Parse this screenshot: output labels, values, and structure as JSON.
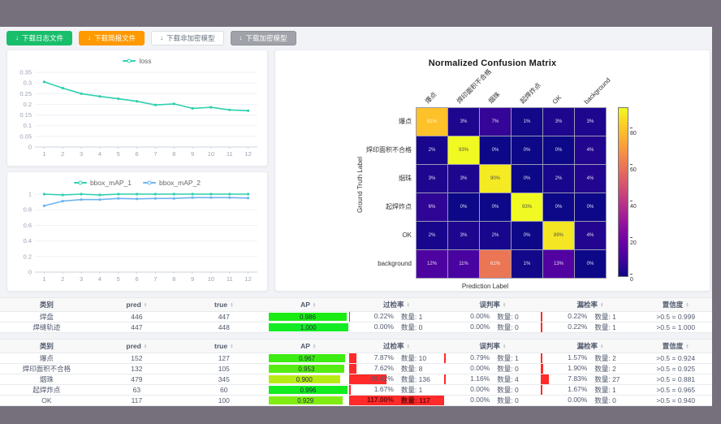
{
  "window": {
    "frame_color": "#76707d",
    "content_bg": "#f2f3f6"
  },
  "toolbar": {
    "buttons": [
      {
        "label": "下载日志文件",
        "icon": "download-icon",
        "color": "#19be6b",
        "text_color": "#ffffff"
      },
      {
        "label": "下载简报文件",
        "icon": "download-icon",
        "color": "#ff9900",
        "text_color": "#ffffff"
      },
      {
        "label": "下载非加密模型",
        "icon": "download-icon",
        "color": "#ffffff",
        "text_color": "#66707e"
      },
      {
        "label": "下载加密模型",
        "icon": "download-icon",
        "color": "#9fa2a8",
        "text_color": "#ffffff"
      }
    ]
  },
  "chart_data": [
    {
      "type": "line",
      "title": "",
      "legend_position": "top",
      "x": [
        1,
        2,
        3,
        4,
        5,
        6,
        7,
        8,
        9,
        10,
        11,
        12
      ],
      "series": [
        {
          "name": "loss",
          "color": "#2ed0ae",
          "values": [
            0.305,
            0.276,
            0.25,
            0.237,
            0.226,
            0.214,
            0.197,
            0.202,
            0.181,
            0.186,
            0.174,
            0.17
          ]
        }
      ],
      "ylim": [
        0,
        0.35
      ],
      "y_ticks": [
        0,
        0.05,
        0.1,
        0.15,
        0.2,
        0.25,
        0.3,
        0.35
      ],
      "grid": true
    },
    {
      "type": "line",
      "title": "",
      "legend_position": "top",
      "x": [
        1,
        2,
        3,
        4,
        5,
        6,
        7,
        8,
        9,
        10,
        11,
        12
      ],
      "series": [
        {
          "name": "bbox_mAP_1",
          "color": "#2ed0ae",
          "values": [
            1,
            0.99,
            1,
            0.99,
            1,
            1,
            1,
            1,
            1,
            1,
            1,
            1
          ]
        },
        {
          "name": "bbox_mAP_2",
          "color": "#6db4ef",
          "values": [
            0.85,
            0.91,
            0.93,
            0.93,
            0.945,
            0.94,
            0.945,
            0.945,
            0.955,
            0.955,
            0.955,
            0.95
          ]
        }
      ],
      "ylim": [
        0,
        1
      ],
      "y_ticks": [
        0,
        0.2,
        0.4,
        0.6,
        0.8,
        1
      ],
      "grid": true
    },
    {
      "type": "heatmap",
      "title": "Normalized Confusion Matrix",
      "xlabel": "Prediction Label",
      "ylabel": "Ground Truth Label",
      "labels": [
        "爆点",
        "焊印面积不合格",
        "烟珠",
        "起焊炸点",
        "OK",
        "background"
      ],
      "values_pct": [
        [
          81,
          3,
          7,
          1,
          3,
          3
        ],
        [
          2,
          93,
          0,
          0,
          0,
          4
        ],
        [
          3,
          3,
          90,
          0,
          2,
          4
        ],
        [
          6,
          0,
          0,
          93,
          0,
          0
        ],
        [
          2,
          3,
          2,
          0,
          89,
          4
        ],
        [
          12,
          11,
          61,
          1,
          13,
          0
        ]
      ],
      "colormap": "plasma",
      "vmax": 93,
      "colorbar_ticks": [
        0,
        20,
        40,
        60,
        80
      ],
      "legend_position": "right-colorbar"
    }
  ],
  "tables": {
    "columns": [
      {
        "label": "类别",
        "sortable": false
      },
      {
        "label": "pred",
        "sortable": true
      },
      {
        "label": "true",
        "sortable": true
      },
      {
        "label": "AP",
        "sortable": true
      },
      {
        "label": "过检率",
        "sortable": true
      },
      {
        "label": "误判率",
        "sortable": true
      },
      {
        "label": "漏检率",
        "sortable": true
      },
      {
        "label": "置信度",
        "sortable": true
      }
    ],
    "count_prefix": "数量: ",
    "groups": [
      {
        "rows": [
          {
            "name": "焊盘",
            "pred": 446,
            "true": 447,
            "ap": "0.986",
            "over": {
              "pct": "0.22%",
              "count": 1
            },
            "mis": {
              "pct": "0.00%",
              "count": 0
            },
            "miss": {
              "pct": "0.22%",
              "count": 1
            },
            "conf": ">0.5 = 0.999"
          },
          {
            "name": "焊缝轨迹",
            "pred": 447,
            "true": 448,
            "ap": "1.000",
            "over": {
              "pct": "0.00%",
              "count": 0
            },
            "mis": {
              "pct": "0.00%",
              "count": 0
            },
            "miss": {
              "pct": "0.22%",
              "count": 1
            },
            "conf": ">0.5 = 1.000"
          }
        ]
      },
      {
        "rows": [
          {
            "name": "爆点",
            "pred": 152,
            "true": 127,
            "ap": "0.967",
            "over": {
              "pct": "7.87%",
              "count": 10
            },
            "mis": {
              "pct": "0.79%",
              "count": 1
            },
            "miss": {
              "pct": "1.57%",
              "count": 2
            },
            "conf": ">0.5 = 0.924"
          },
          {
            "name": "焊印面积不合格",
            "pred": 132,
            "true": 105,
            "ap": "0.953",
            "over": {
              "pct": "7.62%",
              "count": 8
            },
            "mis": {
              "pct": "0.00%",
              "count": 0
            },
            "miss": {
              "pct": "1.90%",
              "count": 2
            },
            "conf": ">0.5 = 0.925"
          },
          {
            "name": "烟珠",
            "pred": 479,
            "true": 345,
            "ap": "0.900",
            "over": {
              "pct": "39.42%",
              "count": 136
            },
            "mis": {
              "pct": "1.16%",
              "count": 4
            },
            "miss": {
              "pct": "7.83%",
              "count": 27
            },
            "conf": ">0.5 = 0.881"
          },
          {
            "name": "起焊炸点",
            "pred": 63,
            "true": 60,
            "ap": "0.996",
            "over": {
              "pct": "1.67%",
              "count": 1
            },
            "mis": {
              "pct": "0.00%",
              "count": 0
            },
            "miss": {
              "pct": "1.67%",
              "count": 1
            },
            "conf": ">0.5 = 0.965"
          },
          {
            "name": "OK",
            "pred": 117,
            "true": 100,
            "ap": "0.929",
            "over": {
              "pct": "117.00%",
              "count": 117
            },
            "mis": {
              "pct": "0.00%",
              "count": 0
            },
            "miss": {
              "pct": "0.00%",
              "count": 0
            },
            "conf": ">0.5 = 0.940"
          }
        ]
      }
    ],
    "bar_colors": {
      "rate_bar": "#ff2a2a",
      "ap_low": "#b5d916",
      "ap_high": "#17d337"
    }
  }
}
